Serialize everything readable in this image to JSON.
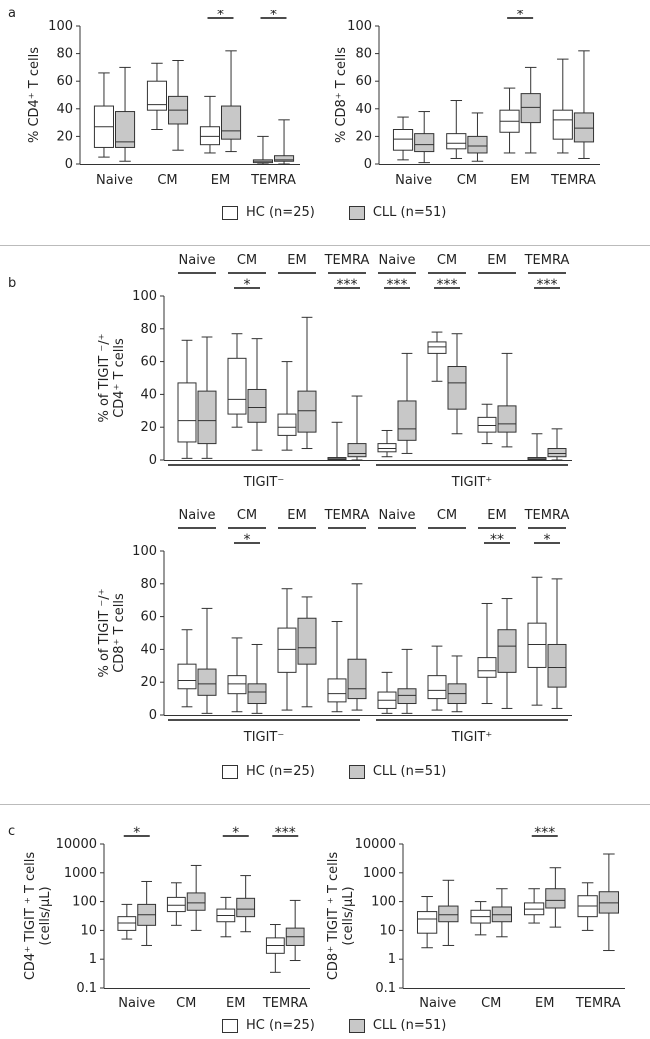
{
  "panel_labels": {
    "a": "a",
    "b": "b",
    "c": "c"
  },
  "legend": {
    "hc": "HC (n=25)",
    "cll": "CLL (n=51)",
    "hc_color": "#ffffff",
    "cll_color": "#c8c8c8"
  },
  "colors": {
    "hc_fill": "#ffffff",
    "cll_fill": "#c8c8c8",
    "stroke": "#333333"
  },
  "chart_data": [
    {
      "id": "a-cd4",
      "type": "box",
      "ylabel": "% CD4⁺ T cells",
      "ylim": [
        0,
        100
      ],
      "yticks": [
        "0",
        "20",
        "40",
        "60",
        "80",
        "100"
      ],
      "categories": [
        "Naive",
        "CM",
        "EM",
        "TEMRA"
      ],
      "significance": [
        "",
        "",
        "*",
        "*"
      ],
      "series": [
        {
          "name": "HC (n=25)",
          "boxes": [
            [
              5,
              12,
              27,
              42,
              66
            ],
            [
              25,
              39,
              43,
              60,
              73
            ],
            [
              8,
              14,
              20,
              27,
              49
            ],
            [
              0,
              1,
              2,
              3,
              20
            ]
          ]
        },
        {
          "name": "CLL (n=51)",
          "boxes": [
            [
              2,
              12,
              16,
              38,
              70
            ],
            [
              10,
              29,
              39,
              49,
              75
            ],
            [
              9,
              18,
              24,
              42,
              82
            ],
            [
              0,
              2,
              3,
              6,
              32
            ]
          ]
        }
      ]
    },
    {
      "id": "a-cd8",
      "type": "box",
      "ylabel": "% CD8⁺ T cells",
      "ylim": [
        0,
        100
      ],
      "yticks": [
        "0",
        "20",
        "40",
        "60",
        "80",
        "100"
      ],
      "categories": [
        "Naive",
        "CM",
        "EM",
        "TEMRA"
      ],
      "significance": [
        "",
        "",
        "*",
        ""
      ],
      "series": [
        {
          "name": "HC (n=25)",
          "boxes": [
            [
              3,
              10,
              18,
              25,
              34
            ],
            [
              4,
              11,
              15,
              22,
              46
            ],
            [
              8,
              23,
              31,
              39,
              55
            ],
            [
              8,
              18,
              32,
              39,
              76
            ]
          ]
        },
        {
          "name": "CLL (n=51)",
          "boxes": [
            [
              1,
              9,
              14,
              22,
              38
            ],
            [
              2,
              8,
              13,
              20,
              37
            ],
            [
              8,
              30,
              41,
              51,
              70
            ],
            [
              4,
              16,
              26,
              37,
              82
            ]
          ]
        }
      ]
    },
    {
      "id": "b-cd4",
      "type": "box",
      "ylabel": "% of TIGIT ⁻/⁺ CD4⁺ T cells",
      "ylim": [
        0,
        100
      ],
      "yticks": [
        "0",
        "20",
        "40",
        "60",
        "80",
        "100"
      ],
      "categories": [
        "Naive",
        "CM",
        "EM",
        "TEMRA",
        "Naive",
        "CM",
        "EM",
        "TEMRA"
      ],
      "groups": [
        "TIGIT⁻",
        "TIGIT⁺"
      ],
      "significance": [
        "",
        "*",
        "",
        "***",
        "***",
        "***",
        "",
        "***"
      ],
      "series": [
        {
          "name": "HC (n=25)",
          "boxes": [
            [
              1,
              11,
              24,
              47,
              73
            ],
            [
              20,
              28,
              37,
              62,
              77
            ],
            [
              6,
              15,
              20,
              28,
              60
            ],
            [
              0,
              0.3,
              0.8,
              1.5,
              23
            ],
            [
              2,
              5,
              7,
              10,
              18
            ],
            [
              48,
              65,
              69,
              72,
              78
            ],
            [
              10,
              17,
              21,
              26,
              34
            ],
            [
              0,
              0.3,
              0.8,
              1.5,
              16
            ]
          ]
        },
        {
          "name": "CLL (n=51)",
          "boxes": [
            [
              1,
              10,
              24,
              42,
              75
            ],
            [
              6,
              23,
              32,
              43,
              74
            ],
            [
              7,
              17,
              30,
              42,
              87
            ],
            [
              0,
              2,
              4,
              10,
              39
            ],
            [
              4,
              12,
              19,
              36,
              65
            ],
            [
              16,
              31,
              47,
              57,
              77
            ],
            [
              8,
              17,
              22,
              33,
              65
            ],
            [
              0,
              2,
              4,
              7,
              19
            ]
          ]
        }
      ]
    },
    {
      "id": "b-cd8",
      "type": "box",
      "ylabel": "% of TIGIT ⁻/⁺ CD8⁺ T cells",
      "ylim": [
        0,
        100
      ],
      "yticks": [
        "0",
        "20",
        "40",
        "60",
        "80",
        "100"
      ],
      "categories": [
        "Naive",
        "CM",
        "EM",
        "TEMRA",
        "Naive",
        "CM",
        "EM",
        "TEMRA"
      ],
      "groups": [
        "TIGIT⁻",
        "TIGIT⁺"
      ],
      "significance": [
        "",
        "*",
        "",
        "",
        "",
        "",
        "**",
        "*"
      ],
      "series": [
        {
          "name": "HC (n=25)",
          "boxes": [
            [
              5,
              16,
              21,
              31,
              52
            ],
            [
              2,
              13,
              19,
              24,
              47
            ],
            [
              3,
              26,
              40,
              53,
              77
            ],
            [
              2,
              8,
              13,
              22,
              57
            ],
            [
              1,
              4,
              9,
              14,
              26
            ],
            [
              3,
              10,
              15,
              24,
              42
            ],
            [
              7,
              23,
              27,
              35,
              68
            ],
            [
              6,
              29,
              43,
              56,
              84
            ]
          ]
        },
        {
          "name": "CLL (n=51)",
          "boxes": [
            [
              1,
              12,
              19,
              28,
              65
            ],
            [
              1,
              7,
              14,
              19,
              43
            ],
            [
              5,
              31,
              41,
              59,
              72
            ],
            [
              3,
              10,
              16,
              34,
              80
            ],
            [
              1,
              7,
              12,
              16,
              40
            ],
            [
              2,
              7,
              13,
              19,
              36
            ],
            [
              4,
              26,
              42,
              52,
              71
            ],
            [
              4,
              17,
              29,
              43,
              83
            ]
          ]
        }
      ]
    },
    {
      "id": "c-cd4",
      "type": "box",
      "scale": "log",
      "ylabel": "CD4⁺ TIGIT ⁺ T cells (cells/µL)",
      "ylim": [
        0.1,
        10000
      ],
      "yticks": [
        "0.1",
        "1",
        "10",
        "100",
        "1000",
        "10000"
      ],
      "categories": [
        "Naive",
        "CM",
        "EM",
        "TEMRA"
      ],
      "significance": [
        "*",
        "",
        "*",
        "***"
      ],
      "series": [
        {
          "name": "HC (n=25)",
          "boxes": [
            [
              5,
              10,
              18,
              30,
              80
            ],
            [
              15,
              45,
              75,
              140,
              450
            ],
            [
              6,
              20,
              33,
              55,
              140
            ],
            [
              0.35,
              1.6,
              3,
              5.5,
              16
            ]
          ]
        },
        {
          "name": "CLL (n=51)",
          "boxes": [
            [
              3,
              15,
              35,
              80,
              500
            ],
            [
              10,
              50,
              90,
              200,
              1800
            ],
            [
              9,
              30,
              55,
              130,
              800
            ],
            [
              0.9,
              3,
              6,
              12,
              110
            ]
          ]
        }
      ]
    },
    {
      "id": "c-cd8",
      "type": "box",
      "scale": "log",
      "ylabel": "CD8⁺ TIGIT ⁺ T cells (cells/µL)",
      "ylim": [
        0.1,
        10000
      ],
      "yticks": [
        "0.1",
        "1",
        "10",
        "100",
        "1000",
        "10000"
      ],
      "categories": [
        "Naive",
        "CM",
        "EM",
        "TEMRA"
      ],
      "significance": [
        "",
        "",
        "***",
        ""
      ],
      "series": [
        {
          "name": "HC (n=25)",
          "boxes": [
            [
              2.5,
              8,
              25,
              45,
              150
            ],
            [
              7,
              18,
              30,
              50,
              100
            ],
            [
              18,
              35,
              55,
              90,
              280
            ],
            [
              10,
              30,
              70,
              160,
              450
            ]
          ]
        },
        {
          "name": "CLL (n=51)",
          "boxes": [
            [
              3,
              20,
              35,
              70,
              550
            ],
            [
              6,
              20,
              35,
              65,
              280
            ],
            [
              13,
              60,
              110,
              280,
              1500
            ],
            [
              2,
              40,
              90,
              220,
              4500
            ]
          ]
        }
      ]
    }
  ]
}
